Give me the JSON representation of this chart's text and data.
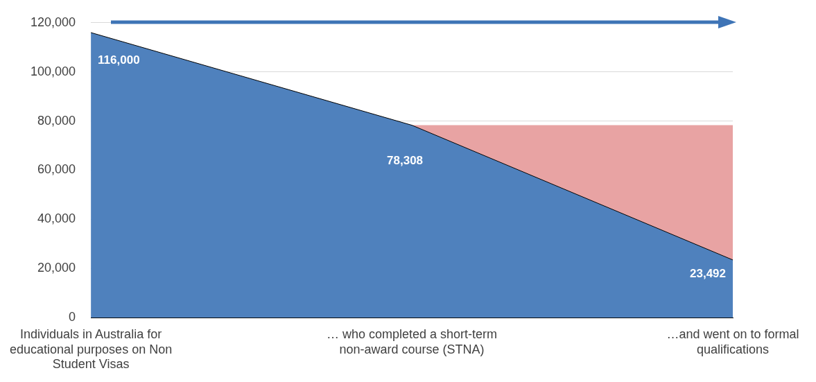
{
  "chart_data": {
    "type": "area",
    "stacked": true,
    "categories": [
      "Individuals in Australia for educational purposes on Non Student Visas",
      "… who completed a short-term non-award course (STNA)",
      "…and went on to formal qualifications"
    ],
    "series": [
      {
        "color": "#4f81bd",
        "values": [
          116000,
          78308,
          23492
        ],
        "value_labels": [
          "116,000",
          "78,308",
          "23,492"
        ]
      },
      {
        "color": "#e8a3a3",
        "values": [
          null,
          0,
          54816
        ]
      }
    ],
    "ylim": [
      0,
      120000
    ],
    "yticks": [
      {
        "value": 0,
        "label": "0"
      },
      {
        "value": 20000,
        "label": "20,000"
      },
      {
        "value": 40000,
        "label": "40,000"
      },
      {
        "value": 60000,
        "label": "60,000"
      },
      {
        "value": 80000,
        "label": "80,000"
      },
      {
        "value": 100000,
        "label": "100,000"
      },
      {
        "value": 120000,
        "label": "120,000"
      }
    ],
    "grid": "y",
    "legend": false
  }
}
